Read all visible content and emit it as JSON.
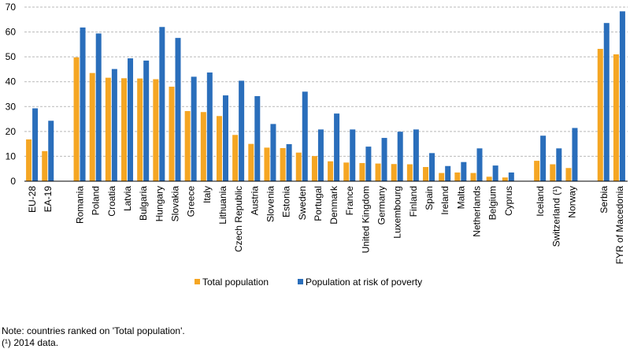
{
  "chart_data": {
    "type": "bar",
    "ylim": [
      0,
      70
    ],
    "yticks": [
      0,
      10,
      20,
      30,
      40,
      50,
      60,
      70
    ],
    "grid": true,
    "legend_position": "bottom",
    "categories": [
      "EU-28",
      "EA-19",
      "",
      "Romania",
      "Poland",
      "Croatia",
      "Latvia",
      "Bulgaria",
      "Hungary",
      "Slovakia",
      "Greece",
      "Italy",
      "Lithuania",
      "Czech Republic",
      "Austria",
      "Slovenia",
      "Estonia",
      "Sweden",
      "Portugal",
      "Denmark",
      "France",
      "United Kingdom",
      "Germany",
      "Luxembourg",
      "Finland",
      "Spain",
      "Ireland",
      "Malta",
      "Netherlands",
      "Belgium",
      "Cyprus",
      "",
      "Iceland",
      "Switzerland (¹)",
      "Norway",
      "",
      "Serbia",
      "FYR of Macedonia"
    ],
    "series": [
      {
        "name": "Total population",
        "color": "#f5a623",
        "values": [
          16.8,
          12.1,
          null,
          49.8,
          43.5,
          41.6,
          41.4,
          41.3,
          41.0,
          38.0,
          28.2,
          27.8,
          26.2,
          18.6,
          15.0,
          13.5,
          13.3,
          11.5,
          10.1,
          8.0,
          7.5,
          7.3,
          7.1,
          6.9,
          6.8,
          5.7,
          3.3,
          3.5,
          3.3,
          1.8,
          1.5,
          null,
          8.2,
          6.8,
          5.3,
          null,
          53.2,
          51.0
        ]
      },
      {
        "name": "Population at risk of poverty",
        "color": "#2a6ebb",
        "values": [
          29.3,
          24.3,
          null,
          61.8,
          59.4,
          45.1,
          49.4,
          48.5,
          62.0,
          57.6,
          42.0,
          43.7,
          34.5,
          40.4,
          34.2,
          23.0,
          14.9,
          36.0,
          20.8,
          27.2,
          20.8,
          13.9,
          17.4,
          19.9,
          20.8,
          11.3,
          6.1,
          7.7,
          13.2,
          6.3,
          3.5,
          null,
          18.3,
          13.2,
          21.4,
          null,
          63.6,
          68.3
        ]
      }
    ]
  },
  "notes": {
    "line1": "Note: countries ranked on 'Total population'.",
    "line2": "(¹) 2014 data."
  }
}
